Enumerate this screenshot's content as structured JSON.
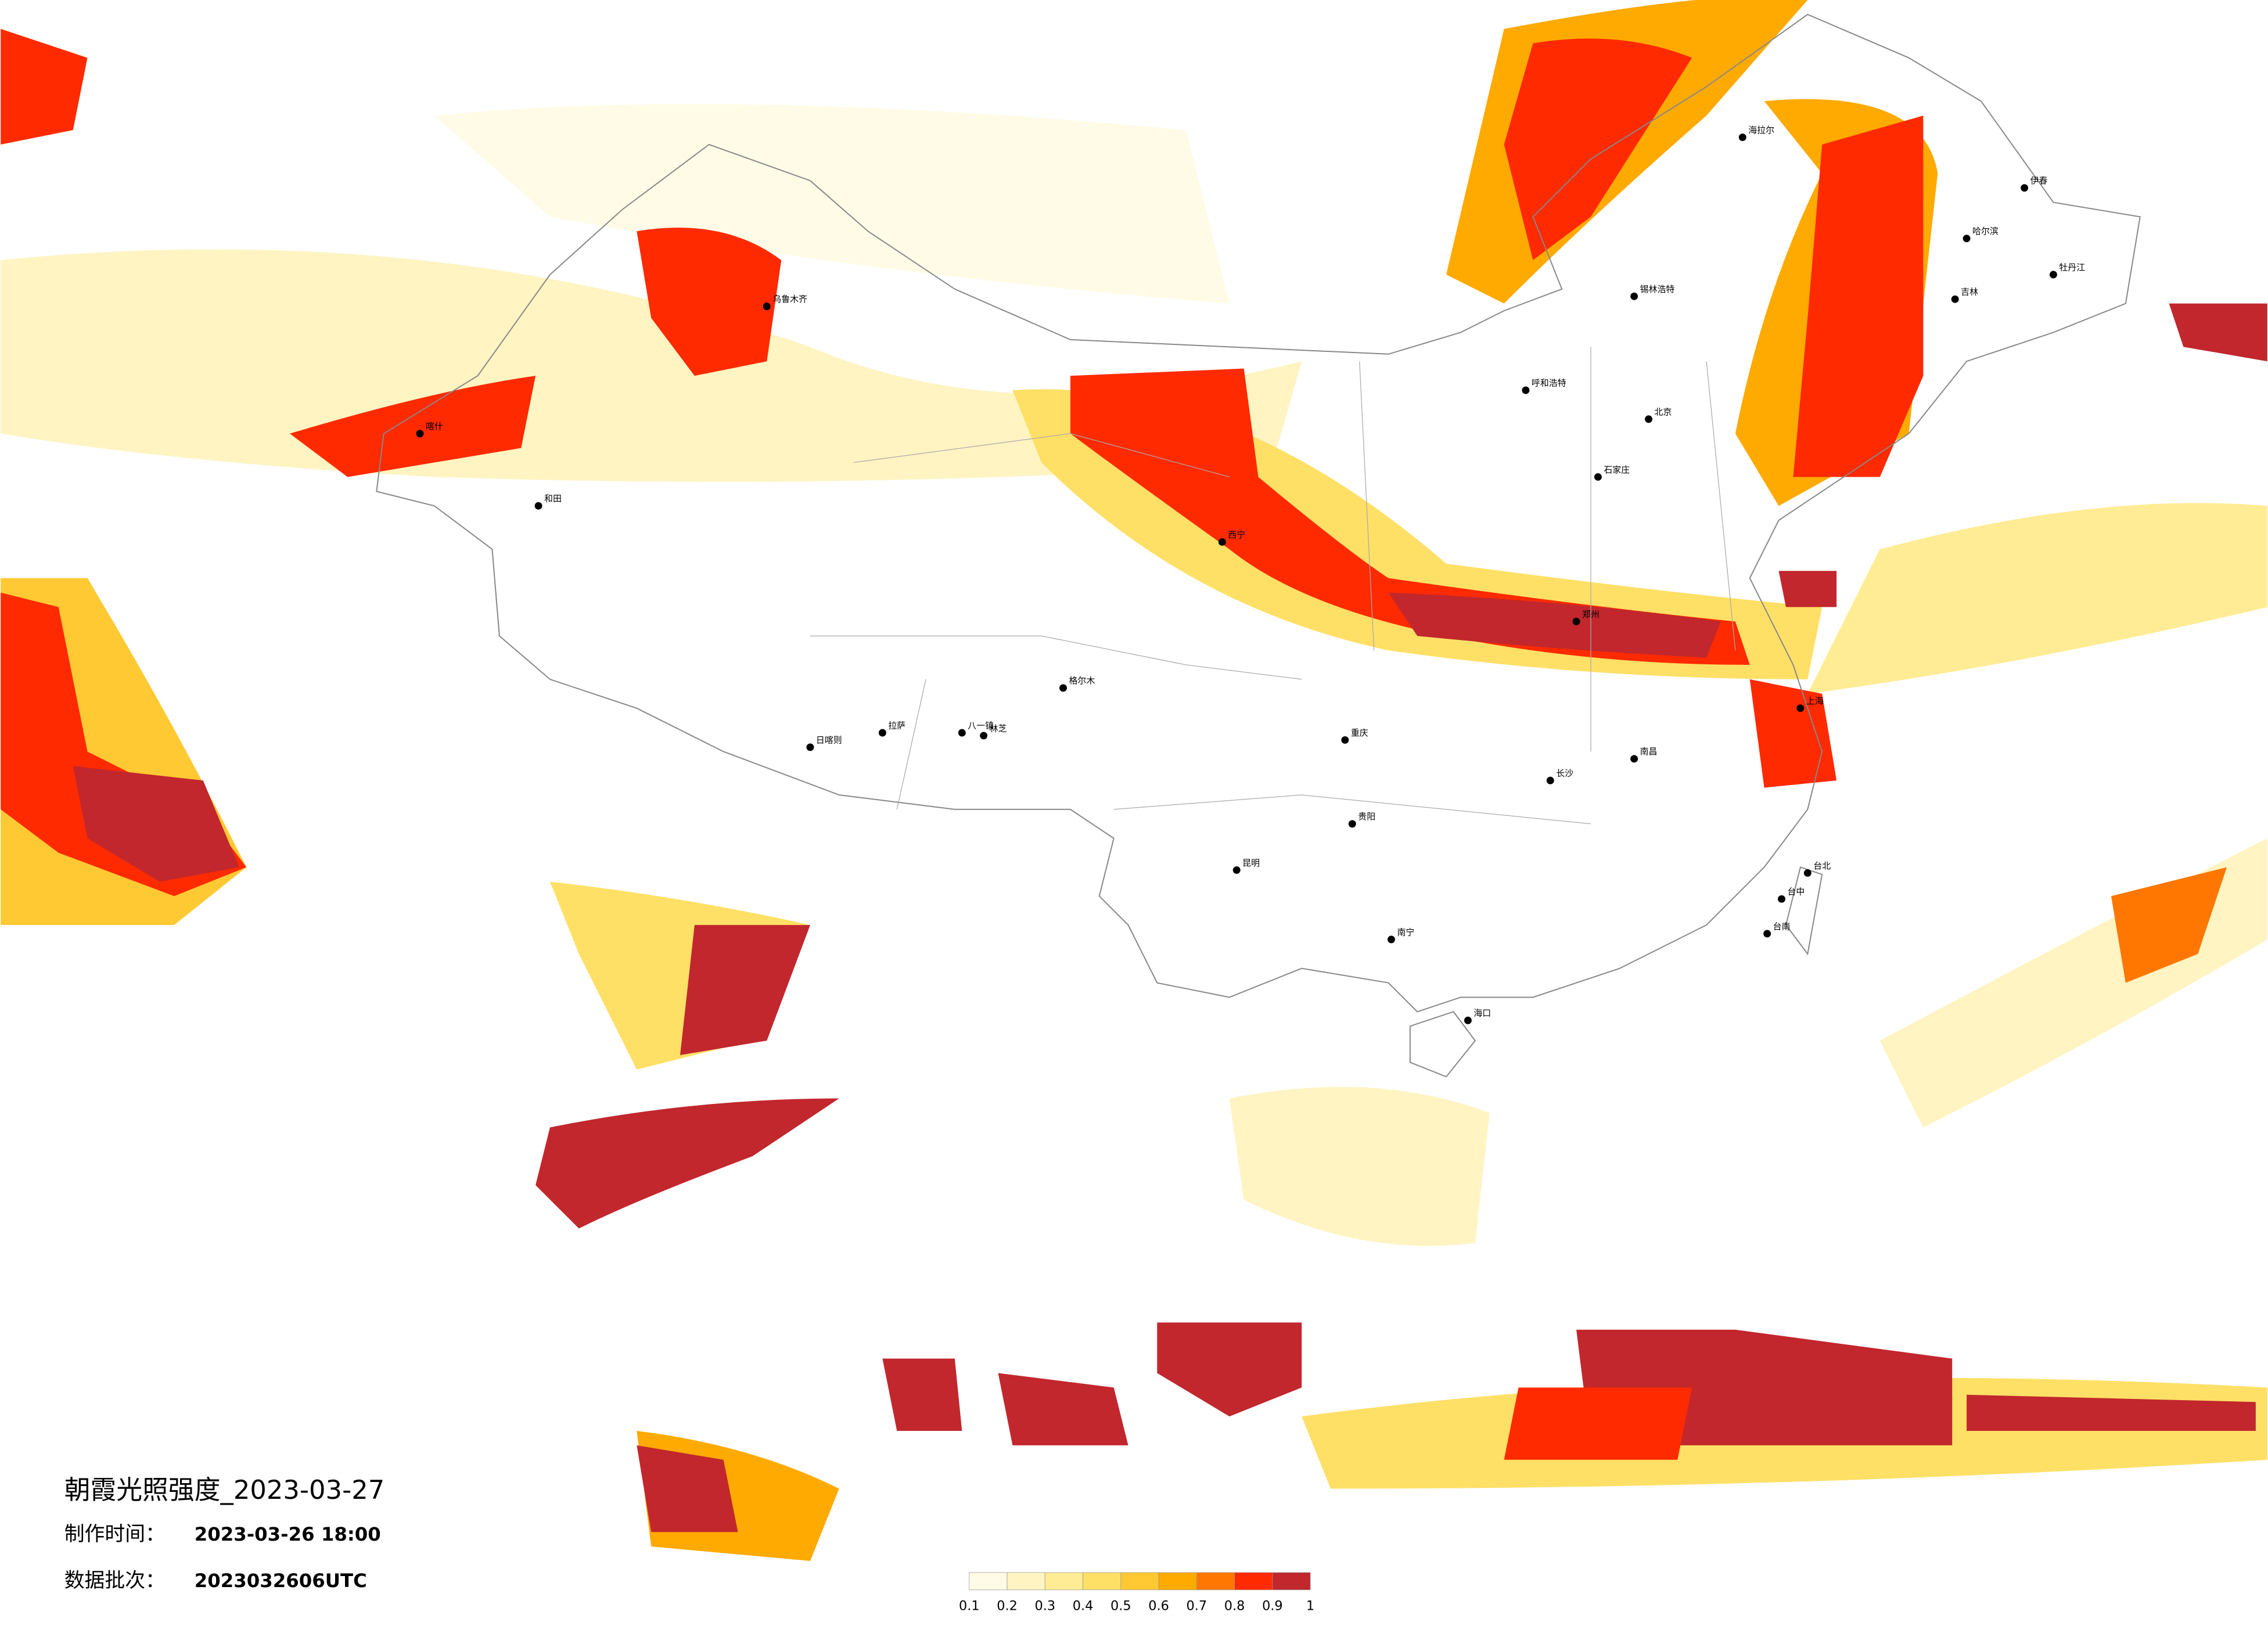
{
  "title": "朝霞光照强度_2023-03-27",
  "made_time": {
    "label": "制作时间：",
    "value": "2023-03-26 18:00"
  },
  "batch": {
    "label": "数据批次：",
    "value": "2023032606UTC"
  },
  "legend": {
    "ticks": [
      0.1,
      0.2,
      0.3,
      0.4,
      0.5,
      0.6,
      0.7,
      0.8,
      0.9,
      1
    ],
    "colors": [
      "#fffbe6",
      "#fff4c2",
      "#ffec94",
      "#ffe066",
      "#ffc933",
      "#ffaa00",
      "#ff7700",
      "#ff2a00",
      "#c1272d"
    ]
  },
  "cities": [
    "乌鲁木齐",
    "和田",
    "喀什",
    "日喀则",
    "拉萨",
    "八一镇",
    "林芝",
    "格尔木",
    "西宁",
    "海拉尔",
    "哈尔滨",
    "吉林",
    "锡林浩特",
    "呼和浩特",
    "北京",
    "石家庄",
    "郑州",
    "南昌",
    "长沙",
    "贵阳",
    "昆明",
    "南宁",
    "海口",
    "台北",
    "台中",
    "台南",
    "重庆",
    "上海",
    "伊春",
    "牡丹江"
  ]
}
